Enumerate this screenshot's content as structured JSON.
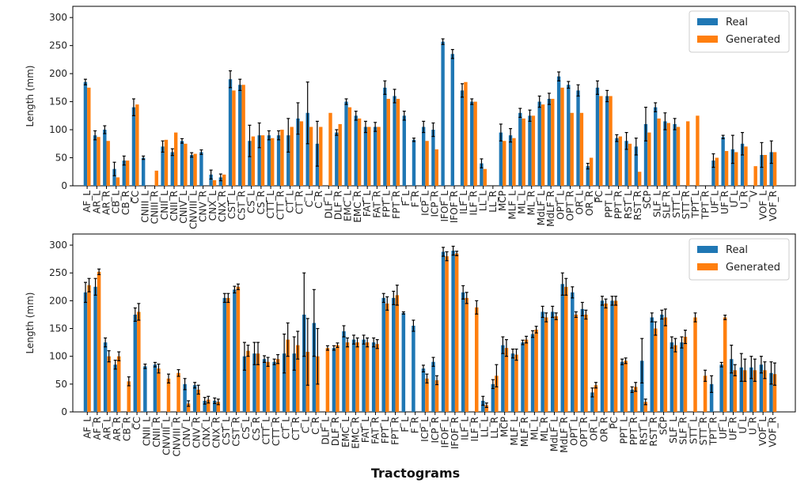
{
  "colors": {
    "real": "#1f77b4",
    "generated": "#ff7f0e",
    "errorbar": "#000000",
    "axis": "#000000"
  },
  "x_title": "Tractograms",
  "chart_data": [
    {
      "type": "bar",
      "ylabel": "Length (mm)",
      "ylim": [
        0,
        320
      ],
      "yticks": [
        0,
        50,
        100,
        150,
        200,
        250,
        300
      ],
      "legend": {
        "position": "top-right",
        "entries": [
          "Real",
          "Generated"
        ]
      },
      "categories": [
        "AF_L",
        "AR_L",
        "AR_R",
        "CB_L",
        "CB_R",
        "CC",
        "CNIII_L",
        "CNIII_R",
        "CNII_L",
        "CNII_R",
        "CNIV_L",
        "CNVIII_L",
        "CNV_R",
        "CNX_L",
        "CNX_R",
        "CST_L",
        "CST_R",
        "CS_L",
        "CS_R",
        "CTT_L",
        "CTT_R",
        "CT_L",
        "CT_R",
        "C_L",
        "C_R",
        "DLF_L",
        "DLF_R",
        "EMC_L",
        "EMC_R",
        "FAT_L",
        "FAT_R",
        "FPT_L",
        "FPT_R",
        "F_L",
        "F_R",
        "ICP_L",
        "ICP_R",
        "IFOF_L",
        "IFOF_R",
        "ILF_L",
        "ILF_R",
        "LL_L",
        "LL_R",
        "MCP",
        "MLF_L",
        "ML_L",
        "ML_R",
        "MdLF_L",
        "MdLF_R",
        "OPT_L",
        "OPT_R",
        "OR_L",
        "OR_R",
        "PC",
        "PPT_L",
        "PPT_R",
        "RST_L",
        "RST_R",
        "SCP",
        "SLF_L",
        "SLF_R",
        "STT_L",
        "STT_R",
        "TPT_L",
        "TPT_R",
        "UF_L",
        "UF_R",
        "U_L",
        "U_R",
        "V",
        "VOF_L",
        "VOF_R"
      ],
      "tick_labels": [
        "AF_L",
        "AR_L",
        "AR_R",
        "CB_L",
        "CB_R",
        "CC",
        "CNIII_L",
        "CNIII_R",
        "CNII_L",
        "CNII_R",
        "CNIV_L",
        "CNVIII_L",
        "CNV_R",
        "CNX_L",
        "CNX_R",
        "CST_L",
        "CST_R",
        "CS_L",
        "CS_R",
        "CTT_L",
        "CTT_R",
        "CT_L",
        "CT_R",
        "C_L",
        "C_R",
        "DLF_L",
        "DLF_R",
        "EMC_L",
        "EMC_R",
        "FAT_L",
        "FAT_R",
        "FPT_L",
        "FPT_R",
        "F_L",
        "F_R",
        "ICP_L",
        "ICP_R",
        "IFOF_L",
        "IFOF_R",
        "ILF_L",
        "ILF_R",
        "LL_L",
        "LL_R",
        "MCP",
        "MLF_L",
        "ML_L",
        "ML_R",
        "MdLF_L",
        "MdLF_R",
        "OPT_L",
        "OPT_R",
        "OR_L",
        "OR_R",
        "PC",
        "PPT_L",
        "PPT_R",
        "RST_L",
        "RST_R",
        "SCP",
        "SLF_L",
        "SLF_R",
        "STT_L",
        "STT_R",
        "TPT_L",
        "TPT_R",
        "UF_L",
        "UF_R",
        "U_L",
        "U_R",
        "V",
        "VOF_L",
        "VOF_R"
      ],
      "series": [
        {
          "name": "Real",
          "values": [
            185,
            90,
            100,
            30,
            45,
            140,
            50,
            null,
            70,
            60,
            80,
            55,
            60,
            20,
            15,
            190,
            180,
            80,
            90,
            90,
            90,
            90,
            120,
            130,
            75,
            null,
            95,
            150,
            125,
            105,
            105,
            175,
            160,
            125,
            82,
            105,
            100,
            257,
            235,
            170,
            150,
            40,
            null,
            95,
            90,
            130,
            125,
            150,
            155,
            195,
            180,
            170,
            35,
            175,
            160,
            85,
            80,
            70,
            110,
            140,
            115,
            110,
            null,
            null,
            null,
            45,
            87,
            65,
            75,
            null,
            55,
            60
          ],
          "errors": [
            5,
            8,
            7,
            12,
            8,
            15,
            3,
            null,
            10,
            6,
            4,
            4,
            4,
            8,
            6,
            15,
            10,
            28,
            22,
            8,
            8,
            30,
            28,
            55,
            40,
            null,
            5,
            5,
            8,
            10,
            8,
            12,
            12,
            8,
            3,
            10,
            12,
            5,
            8,
            12,
            5,
            8,
            null,
            15,
            12,
            8,
            10,
            10,
            10,
            8,
            6,
            10,
            5,
            12,
            10,
            6,
            15,
            15,
            30,
            8,
            15,
            10,
            null,
            null,
            null,
            12,
            3,
            25,
            20,
            null,
            22,
            20
          ]
        },
        {
          "name": "Generated",
          "values": [
            175,
            87,
            80,
            15,
            45,
            145,
            null,
            27,
            82,
            95,
            75,
            57,
            null,
            10,
            20,
            170,
            180,
            88,
            90,
            85,
            100,
            105,
            115,
            105,
            105,
            130,
            110,
            140,
            120,
            105,
            105,
            155,
            155,
            null,
            null,
            80,
            65,
            null,
            null,
            185,
            150,
            30,
            null,
            80,
            85,
            120,
            125,
            145,
            155,
            175,
            130,
            130,
            50,
            160,
            160,
            88,
            75,
            25,
            95,
            120,
            112,
            105,
            115,
            125,
            null,
            50,
            62,
            60,
            70,
            35,
            55,
            60
          ]
        }
      ]
    },
    {
      "type": "bar",
      "ylabel": "Length (mm)",
      "ylim": [
        0,
        320
      ],
      "yticks": [
        0,
        50,
        100,
        150,
        200,
        250,
        300
      ],
      "legend": {
        "position": "top-right",
        "entries": [
          "Real",
          "Generated"
        ]
      },
      "categories": [
        "AF_L",
        "AF_R",
        "AR_L",
        "AR_R",
        "CB_R",
        "CC",
        "CNII_L",
        "CNII_R",
        "CNVIII_L",
        "CNVIII_R",
        "CNV_L",
        "CNV_R",
        "CNX_L",
        "CNX_R",
        "CST_L",
        "CST_R",
        "CS_L",
        "CS_R",
        "CTT_L",
        "CTT_R",
        "CT_L",
        "CT_R",
        "C_L",
        "C_R",
        "DLF_L",
        "DLF_R",
        "EMC_L",
        "EMC_R",
        "FAT_L",
        "FAT_R",
        "FPT_L",
        "FPT_R",
        "F_L",
        "F_R",
        "ICP_L",
        "ICP_R",
        "IFOF_L",
        "IFOF_R",
        "ILF_L",
        "ILF_R",
        "LL_L",
        "LL_R",
        "MCP",
        "MLF_L",
        "MLF_R",
        "ML_L",
        "ML_R",
        "MdLF_L",
        "MdLF_R",
        "OPT_L",
        "OPT_R",
        "OR_L",
        "OR_R",
        "PC",
        "PPT_L",
        "PPT_R",
        "RST_L",
        "RST_R",
        "SCP",
        "SLF_L",
        "SLF_R",
        "STT_L",
        "STT_R",
        "TPT_R",
        "UF_L",
        "UF_R",
        "U_L",
        "U_R",
        "VOF_L",
        "VOF_R"
      ],
      "tick_labels": [
        "AF_L",
        "AF_R",
        "AR_L",
        "AR_R",
        "CB_R",
        "CC",
        "CNII_L",
        "CNII_R",
        "CNVIII_L",
        "CNVIII_R",
        "CNV_L",
        "CNV_R",
        "CNX_L",
        "CNX_R",
        "CST_L",
        "CST_R",
        "CS_L",
        "CS_R",
        "CTT_L",
        "CTT_R",
        "CT_L",
        "CT_R",
        "C_L",
        "C_R",
        "DLF_L",
        "DLF_R",
        "EMC_L",
        "EMC_R",
        "FAT_L",
        "FAT_R",
        "FPT_L",
        "FPT_R",
        "F_L",
        "F_R",
        "ICP_L",
        "ICP_R",
        "IFOF_L",
        "IFOF_R",
        "ILF_L",
        "ILF_R",
        "LL_L",
        "LL_R",
        "MCP",
        "MLF_L",
        "MLF_R",
        "ML_L",
        "ML_R",
        "MdLF_L",
        "MdLF_R",
        "OPT_L",
        "OPT_R",
        "OR_L",
        "OR_R",
        "PC",
        "PPT_L",
        "PPT_R",
        "RST_L",
        "RST_R",
        "SCP",
        "SLF_L",
        "SLF_R",
        "STT_L",
        "STT_R",
        "TPT_R",
        "UF_L",
        "UF_R",
        "U_L",
        "U_R",
        "VOF_L",
        "VOF_R"
      ],
      "series": [
        {
          "name": "Real",
          "values": [
            215,
            225,
            125,
            85,
            null,
            175,
            82,
            85,
            null,
            null,
            50,
            48,
            20,
            20,
            205,
            220,
            100,
            105,
            95,
            90,
            105,
            105,
            175,
            160,
            null,
            115,
            145,
            130,
            130,
            125,
            205,
            205,
            178,
            155,
            78,
            90,
            288,
            290,
            215,
            null,
            20,
            50,
            120,
            105,
            125,
            140,
            180,
            180,
            230,
            215,
            185,
            35,
            200,
            200,
            90,
            40,
            92,
            170,
            175,
            125,
            125,
            null,
            null,
            50,
            85,
            95,
            80,
            80,
            85,
            70
          ],
          "errors": [
            18,
            15,
            8,
            8,
            null,
            12,
            4,
            4,
            null,
            null,
            10,
            5,
            6,
            5,
            8,
            6,
            25,
            20,
            6,
            5,
            35,
            30,
            75,
            60,
            null,
            4,
            10,
            8,
            8,
            8,
            8,
            12,
            2,
            10,
            6,
            8,
            8,
            8,
            12,
            null,
            8,
            8,
            15,
            8,
            4,
            6,
            10,
            10,
            20,
            10,
            12,
            8,
            8,
            8,
            5,
            5,
            40,
            8,
            8,
            10,
            10,
            null,
            null,
            15,
            4,
            25,
            25,
            20,
            15,
            20
          ]
        },
        {
          "name": "Generated",
          "values": [
            228,
            252,
            100,
            100,
            55,
            180,
            null,
            78,
            60,
            70,
            15,
            40,
            22,
            18,
            205,
            225,
            110,
            105,
            90,
            95,
            130,
            120,
            108,
            100,
            115,
            120,
            125,
            125,
            125,
            122,
            195,
            210,
            null,
            null,
            60,
            57,
            280,
            285,
            205,
            188,
            12,
            65,
            115,
            103,
            130,
            148,
            170,
            172,
            225,
            175,
            175,
            48,
            195,
            200,
            92,
            45,
            18,
            150,
            170,
            120,
            135,
            170,
            65,
            null,
            170,
            75,
            75,
            75,
            75,
            68
          ],
          "errors": [
            12,
            5,
            10,
            8,
            8,
            15,
            null,
            8,
            8,
            6,
            5,
            8,
            6,
            5,
            8,
            5,
            10,
            20,
            8,
            8,
            30,
            25,
            60,
            50,
            4,
            4,
            8,
            8,
            8,
            8,
            12,
            18,
            null,
            null,
            8,
            8,
            8,
            4,
            10,
            12,
            4,
            20,
            15,
            10,
            6,
            6,
            8,
            6,
            15,
            5,
            8,
            5,
            8,
            8,
            5,
            8,
            5,
            12,
            15,
            12,
            12,
            8,
            10,
            null,
            4,
            10,
            20,
            20,
            15,
            20
          ]
        }
      ]
    }
  ]
}
